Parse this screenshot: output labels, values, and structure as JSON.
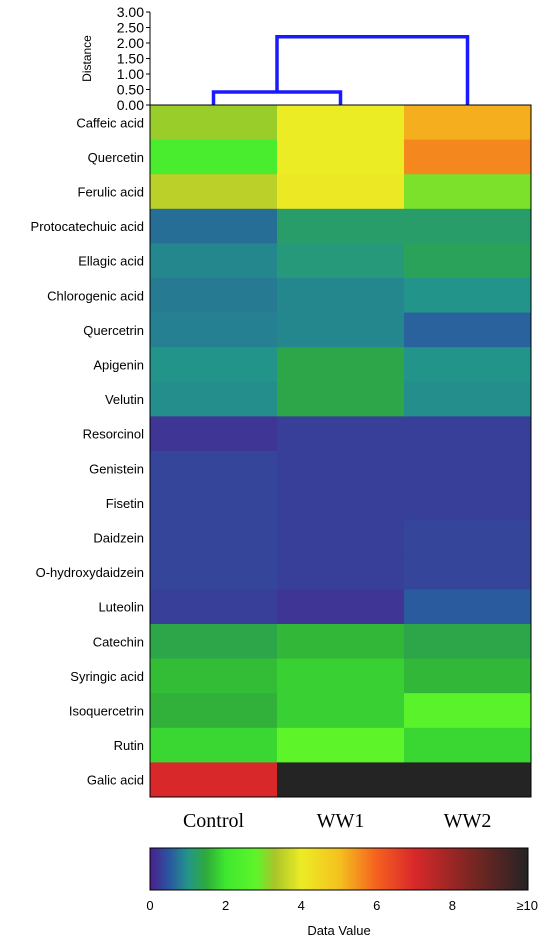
{
  "chart_data": {
    "type": "heatmap",
    "columns": [
      "Control",
      "WW1",
      "WW2"
    ],
    "rows": [
      "Caffeic acid",
      "Quercetin",
      "Ferulic acid",
      "Protocatechuic acid",
      "Ellagic acid",
      "Chlorogenic acid",
      "Quercetrin",
      "Apigenin",
      "Velutin",
      "Resorcinol",
      "Genistein",
      "Fisetin",
      "Daidzein",
      "O-hydroxydaidzein",
      "Luteolin",
      "Catechin",
      "Syringic acid",
      "Isoquercetrin",
      "Rutin",
      "Galic acid"
    ],
    "values": [
      [
        3.2,
        4.0,
        5.2
      ],
      [
        2.3,
        4.0,
        5.6
      ],
      [
        3.5,
        4.1,
        3.0
      ],
      [
        0.7,
        1.2,
        1.2
      ],
      [
        0.9,
        1.1,
        1.3
      ],
      [
        0.8,
        0.9,
        1.0
      ],
      [
        0.85,
        0.9,
        0.6
      ],
      [
        1.0,
        1.4,
        1.0
      ],
      [
        0.95,
        1.4,
        0.95
      ],
      [
        0.2,
        0.3,
        0.3
      ],
      [
        0.35,
        0.3,
        0.3
      ],
      [
        0.35,
        0.3,
        0.3
      ],
      [
        0.35,
        0.3,
        0.35
      ],
      [
        0.35,
        0.3,
        0.35
      ],
      [
        0.3,
        0.2,
        0.55
      ],
      [
        1.4,
        1.6,
        1.4
      ],
      [
        1.65,
        1.8,
        1.6
      ],
      [
        1.55,
        1.8,
        2.7
      ],
      [
        1.85,
        2.8,
        1.85
      ],
      [
        7.0,
        10,
        10
      ]
    ],
    "colorbar": {
      "title": "Data Value",
      "ticks": [
        "0",
        "2",
        "4",
        "6",
        "8",
        "≥10"
      ],
      "range": [
        0,
        10
      ],
      "stops": [
        [
          0.0,
          "#4b1f8c"
        ],
        [
          0.05,
          "#2a55a0"
        ],
        [
          0.1,
          "#23948a"
        ],
        [
          0.15,
          "#2fab3a"
        ],
        [
          0.2,
          "#3ee82f"
        ],
        [
          0.28,
          "#5ef42a"
        ],
        [
          0.33,
          "#a8c52a"
        ],
        [
          0.4,
          "#ecec25"
        ],
        [
          0.5,
          "#f4c21e"
        ],
        [
          0.6,
          "#f5601f"
        ],
        [
          0.7,
          "#d8282a"
        ],
        [
          0.85,
          "#7a2622"
        ],
        [
          1.0,
          "#242424"
        ]
      ]
    },
    "dendrogram": {
      "axis_title": "Distance",
      "ticks": [
        "3.00",
        "2.50",
        "2.00",
        "1.50",
        "1.00",
        "0.50",
        "0.00"
      ],
      "range": [
        0,
        3
      ],
      "merges": [
        {
          "cols": [
            0,
            1
          ],
          "height": 0.42
        },
        {
          "cols": [
            "0-1",
            2
          ],
          "height": 2.2
        }
      ],
      "line_color": "#1a1aff"
    }
  }
}
